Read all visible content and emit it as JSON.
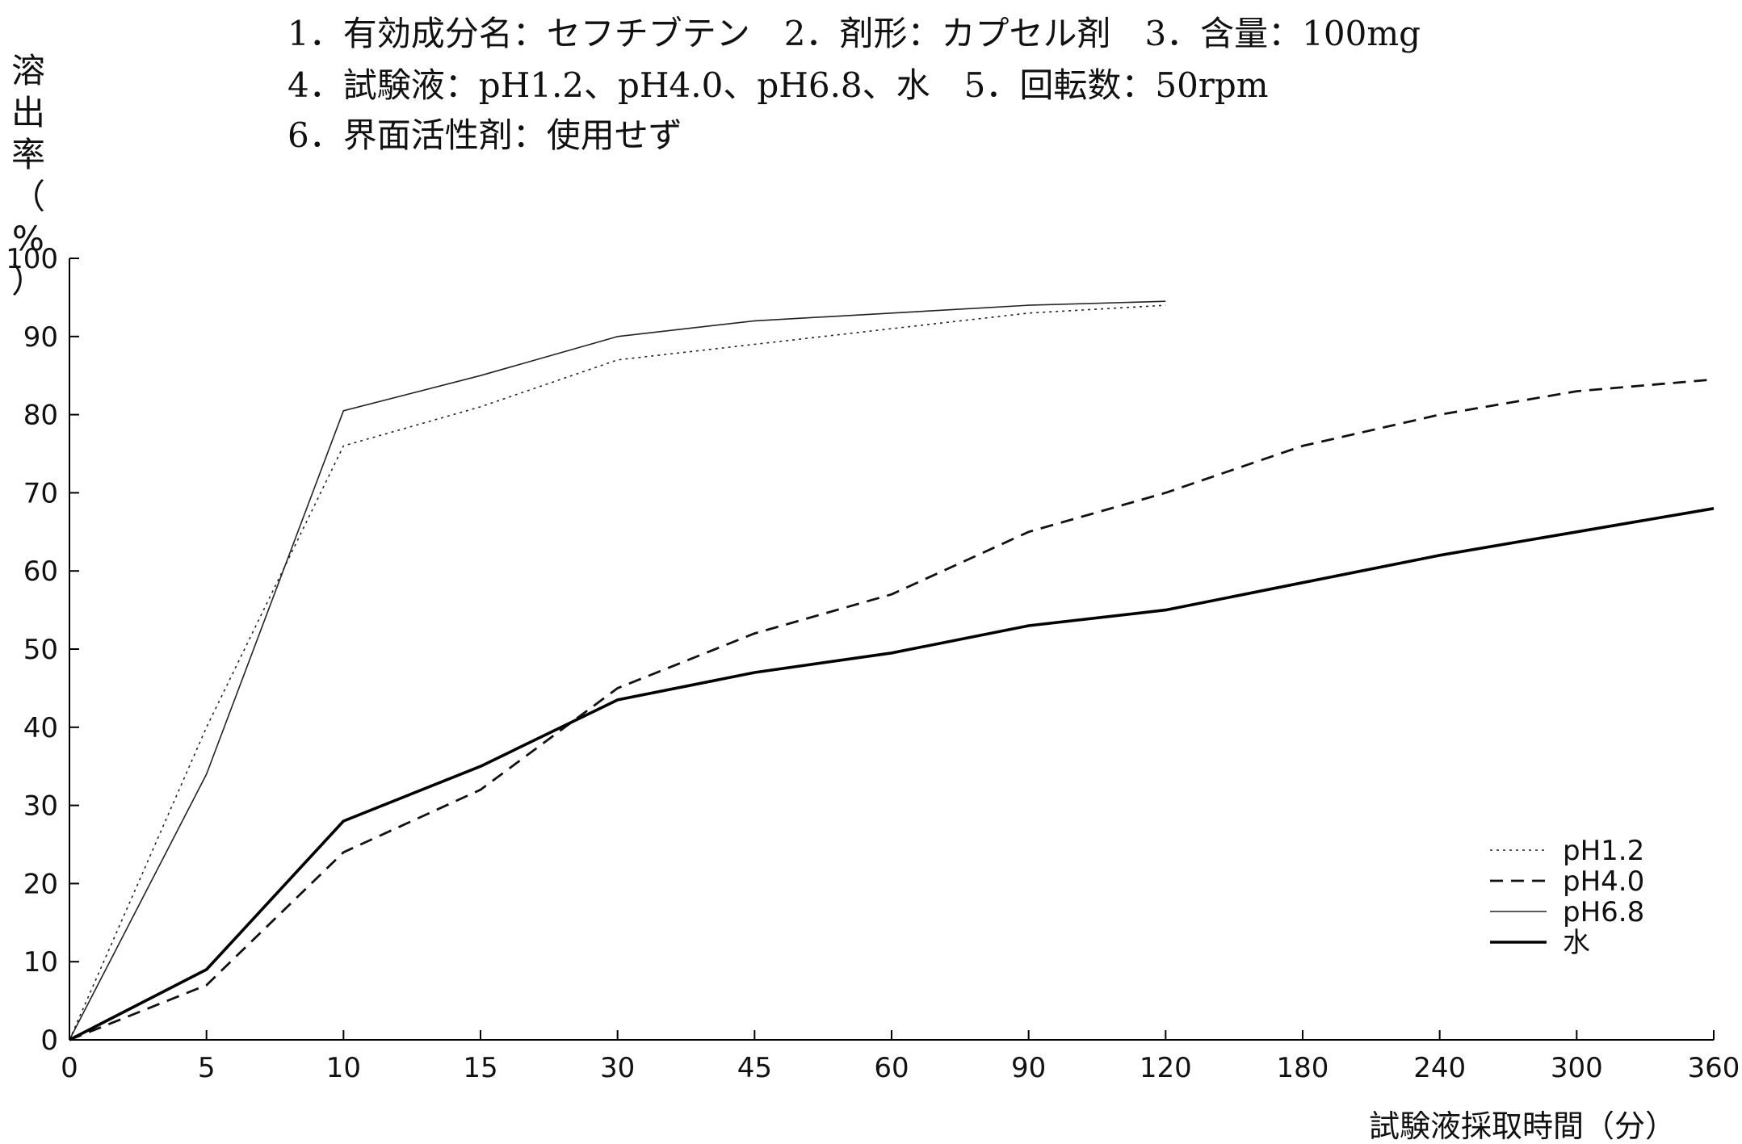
{
  "header": {
    "line1": "1．有効成分名：セフチブテン　2．剤形：カプセル剤　3．含量：100mg",
    "line2": "4．試験液：pH1.2、pH4.0、pH6.8、水　5．回転数：50rpm",
    "line3": "6．界面活性剤：使用せず"
  },
  "chart_data": {
    "type": "line",
    "title": "",
    "ylabel": "溶出率（%）",
    "xlabel": "試験液採取時間（分）",
    "categories": [
      "0",
      "5",
      "10",
      "15",
      "30",
      "45",
      "60",
      "90",
      "120",
      "180",
      "240",
      "300",
      "360"
    ],
    "x": [
      0,
      5,
      10,
      15,
      30,
      45,
      60,
      90,
      120,
      180,
      240,
      300,
      360
    ],
    "ylim": [
      0,
      100
    ],
    "yticks": [
      0,
      10,
      20,
      30,
      40,
      50,
      60,
      70,
      80,
      90,
      100
    ],
    "grid": false,
    "legend_position": "bottom-right",
    "series": [
      {
        "name": "pH1.2",
        "style": "dotted",
        "weight": "thin",
        "color": "#222222",
        "x": [
          0,
          5,
          10,
          15,
          30,
          45,
          60,
          90,
          120
        ],
        "values": [
          0,
          40,
          76,
          81,
          87,
          89,
          91,
          93,
          94
        ]
      },
      {
        "name": "pH4.0",
        "style": "dashed",
        "weight": "medium",
        "color": "#111111",
        "x": [
          0,
          5,
          10,
          15,
          30,
          45,
          60,
          90,
          120,
          180,
          240,
          300,
          360
        ],
        "values": [
          0,
          7,
          24,
          32,
          45,
          52,
          57,
          65,
          70,
          76,
          80,
          83,
          84.5
        ]
      },
      {
        "name": "pH6.8",
        "style": "solid",
        "weight": "thin",
        "color": "#222222",
        "x": [
          0,
          5,
          10,
          15,
          30,
          45,
          60,
          90,
          120
        ],
        "values": [
          0,
          34,
          80.5,
          85,
          90,
          92,
          93,
          94,
          94.5
        ]
      },
      {
        "name": "水",
        "style": "solid",
        "weight": "thick",
        "color": "#000000",
        "x": [
          0,
          5,
          10,
          15,
          30,
          45,
          60,
          90,
          120,
          180,
          240,
          300,
          360
        ],
        "values": [
          0,
          9,
          28,
          35,
          43.5,
          47,
          49.5,
          53,
          55,
          58.5,
          62,
          65,
          68
        ]
      }
    ]
  }
}
